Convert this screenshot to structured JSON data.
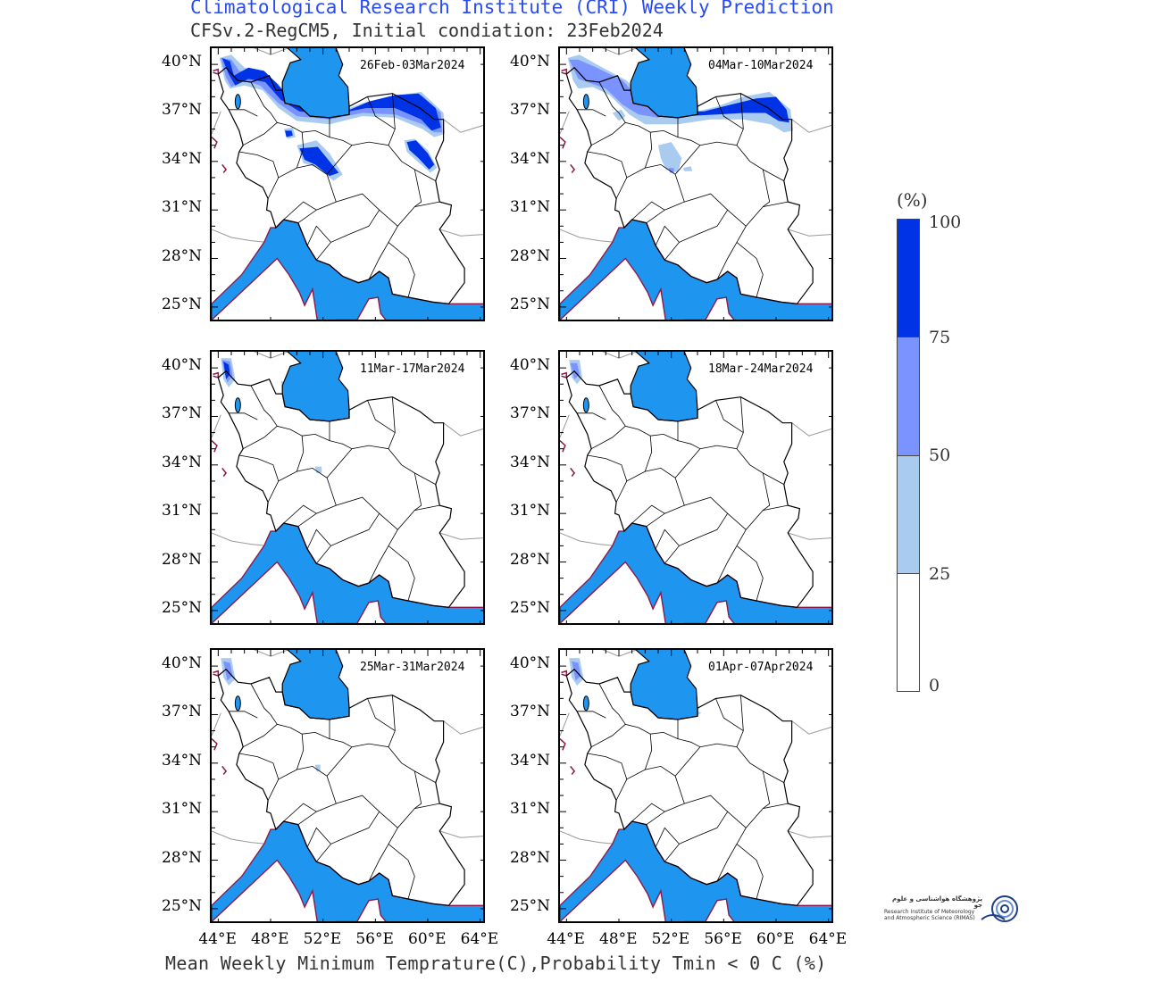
{
  "header": {
    "title": "Climatological Research Institute (CRI) Weekly Prediction",
    "subtitle": "CFSv.2-RegCM5, Initial condiation: 23Feb2024"
  },
  "footer": {
    "caption": "Mean Weekly Minimum Temprature(C),Probability Tmin < 0 C (%)"
  },
  "panels": [
    {
      "period": "26Feb-03Mar2024"
    },
    {
      "period": "04Mar-10Mar2024"
    },
    {
      "period": "11Mar-17Mar2024"
    },
    {
      "period": "18Mar-24Mar2024"
    },
    {
      "period": "25Mar-31Mar2024"
    },
    {
      "period": "01Apr-07Apr2024"
    }
  ],
  "axes": {
    "lat_labels": [
      "40°N",
      "37°N",
      "34°N",
      "31°N",
      "28°N",
      "25°N"
    ],
    "lon_labels": [
      "44°E",
      "48°E",
      "52°E",
      "56°E",
      "60°E",
      "64°E"
    ]
  },
  "colorbar": {
    "unit": "(%)",
    "ticks": [
      "100",
      "75",
      "50",
      "25",
      "0"
    ],
    "colors": [
      "#0033e6",
      "#7a93ff",
      "#a9cbf0",
      "#ffffff"
    ]
  },
  "colors": {
    "sea": "#1e96f0",
    "coast": "#8b1a4a",
    "border": "#000000"
  },
  "logo": {
    "text_fa": "پژوهشگاه هواشناسی و علوم جو",
    "text_en": "Research Institute of Meteorology and Atmospheric Science (RIMAS)"
  }
}
